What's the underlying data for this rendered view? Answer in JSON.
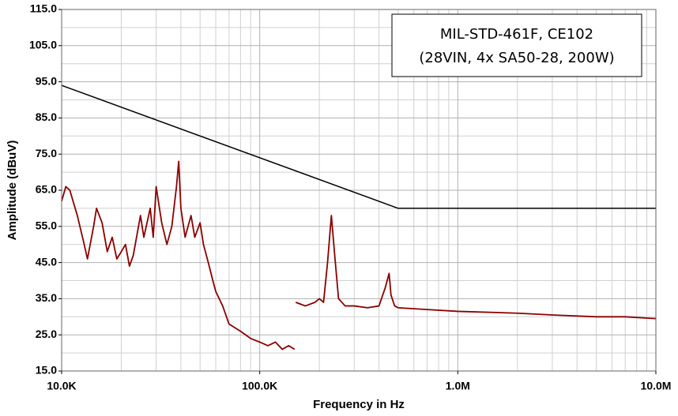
{
  "chart_data": {
    "type": "line",
    "title": "MIL-STD-461F, CE102",
    "subtitle": "(28VIN, 4x SA50-28, 200W)",
    "x_label": "Frequency in Hz",
    "y_label": "Amplitude (dBuV)",
    "x_scale": "log",
    "grid": true,
    "xlim": [
      10000,
      10000000
    ],
    "ylim": [
      15,
      115
    ],
    "xticks": [
      {
        "value": 10000,
        "label": "10.0K"
      },
      {
        "value": 100000,
        "label": "100.0K"
      },
      {
        "value": 1000000,
        "label": "1.0M"
      },
      {
        "value": 10000000,
        "label": "10.0M"
      }
    ],
    "yticks": [
      {
        "value": 15,
        "label": "15.0"
      },
      {
        "value": 25,
        "label": "25.0"
      },
      {
        "value": 35,
        "label": "35.0"
      },
      {
        "value": 45,
        "label": "45.0"
      },
      {
        "value": 55,
        "label": "55.0"
      },
      {
        "value": 65,
        "label": "65.0"
      },
      {
        "value": 75,
        "label": "75.0"
      },
      {
        "value": 85,
        "label": "85.0"
      },
      {
        "value": 95,
        "label": "95.0"
      },
      {
        "value": 105,
        "label": "105.0"
      },
      {
        "value": 115,
        "label": "115.0"
      }
    ],
    "series": [
      {
        "color": "#000000",
        "x": [
          10000,
          500000,
          10000000
        ],
        "values": [
          94,
          60,
          60
        ]
      },
      {
        "color": "#8b0000",
        "x": [
          10000,
          10500,
          11000,
          12000,
          13000,
          13500,
          14500,
          15000,
          16000,
          17000,
          18000,
          19000,
          20000,
          21000,
          22000,
          23000,
          25000,
          26000,
          28000,
          29000,
          30000,
          32000,
          34000,
          36000,
          38000,
          39000,
          40000,
          42000,
          45000,
          47000,
          50000,
          52000,
          55000,
          58000,
          60000,
          65000,
          70000,
          80000,
          90000,
          100000,
          110000,
          120000,
          130000,
          140000,
          150000,
          150000,
          152000,
          170000,
          190000,
          200000,
          210000,
          220000,
          230000,
          240000,
          250000,
          270000,
          300000,
          350000,
          400000,
          430000,
          450000,
          460000,
          480000,
          500000,
          700000,
          1000000,
          2000000,
          3000000,
          5000000,
          7000000,
          10000000
        ],
        "values": [
          62,
          66,
          65,
          58,
          50,
          46,
          55,
          60,
          56,
          48,
          52,
          46,
          48,
          50,
          44,
          47,
          58,
          52,
          60,
          52,
          66,
          56,
          50,
          55,
          66,
          73,
          60,
          52,
          58,
          52,
          56,
          50,
          45,
          40,
          37,
          33,
          28,
          26,
          24,
          23,
          22,
          23,
          21,
          22,
          21,
          null,
          34,
          33,
          34,
          35,
          34,
          45,
          58,
          46,
          35,
          33,
          33,
          32.5,
          33,
          38,
          42,
          36,
          33,
          32.5,
          32,
          31.5,
          31,
          30.5,
          30,
          30,
          29.5
        ]
      }
    ]
  }
}
